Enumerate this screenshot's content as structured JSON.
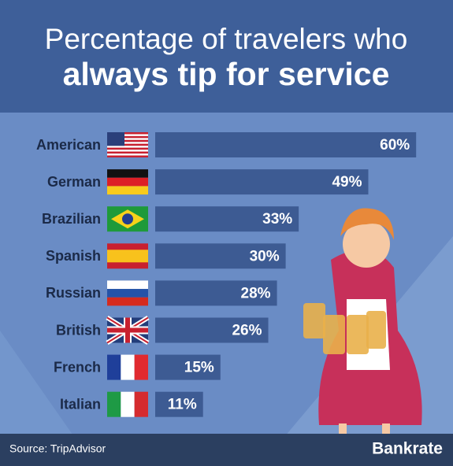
{
  "chart_data": {
    "type": "bar",
    "title": "Percentage of travelers who",
    "subtitle": "always tip for service",
    "categories": [
      "American",
      "German",
      "Brazilian",
      "Spanish",
      "Russian",
      "British",
      "French",
      "Italian"
    ],
    "values": [
      60,
      49,
      33,
      30,
      28,
      26,
      15,
      11
    ],
    "value_labels": [
      "60%",
      "49%",
      "33%",
      "30%",
      "28%",
      "26%",
      "15%",
      "11%"
    ],
    "color": "#3d5b93",
    "source": "Source: TripAdvisor",
    "brand": "Bankrate"
  }
}
